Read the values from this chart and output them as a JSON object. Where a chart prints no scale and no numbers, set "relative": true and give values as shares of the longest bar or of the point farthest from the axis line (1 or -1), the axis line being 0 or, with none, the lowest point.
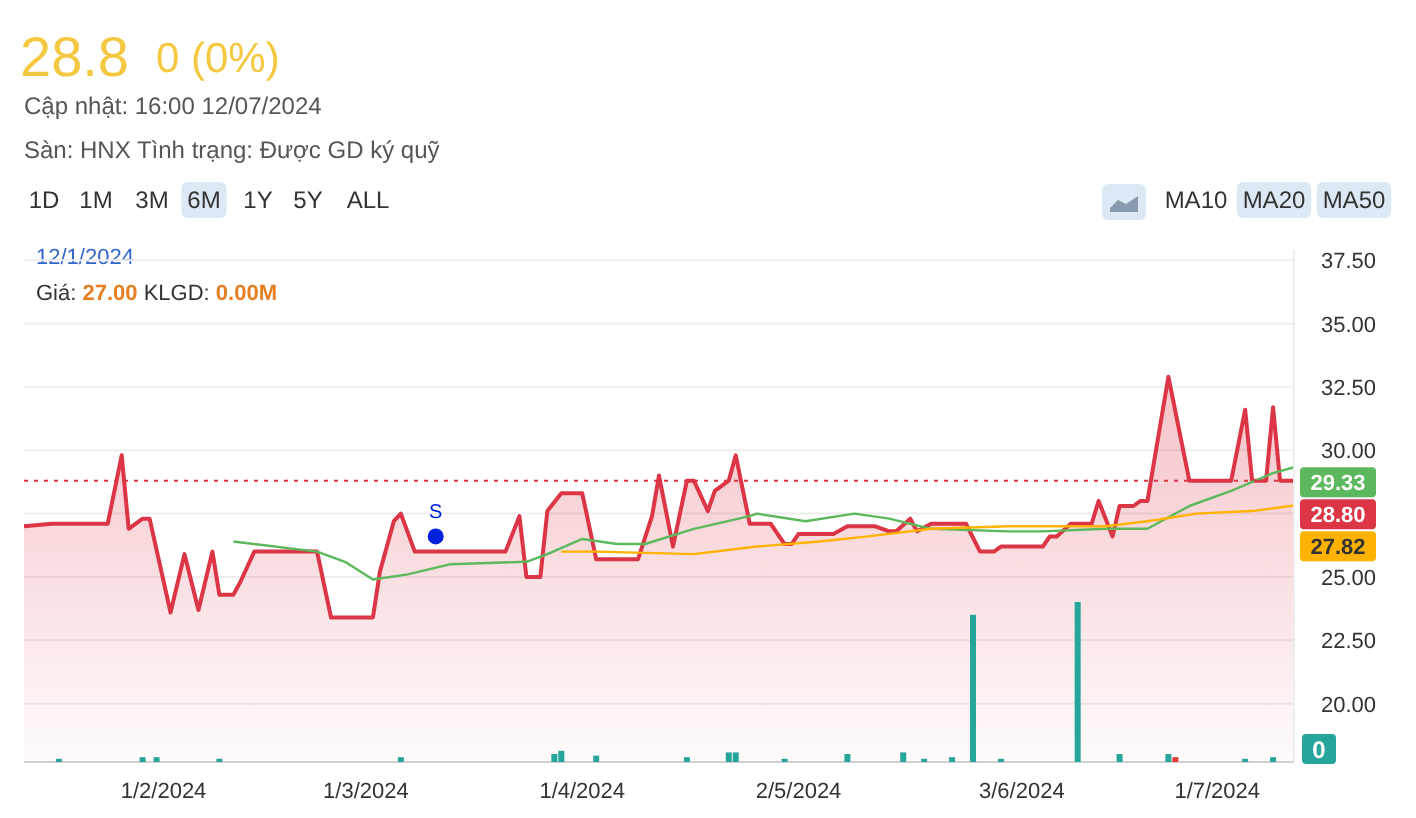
{
  "chart_data": [
    {
      "type": "area",
      "title": "28.8",
      "subtitle": "0 (0%)",
      "x": [
        "2024-01-12",
        "2024-01-16",
        "2024-01-24",
        "2024-01-26",
        "2024-01-27",
        "2024-01-29",
        "2024-01-30",
        "2024-02-02",
        "2024-02-04",
        "2024-02-06",
        "2024-02-08",
        "2024-02-09",
        "2024-02-11",
        "2024-02-12",
        "2024-02-14",
        "2024-02-23",
        "2024-02-25",
        "2024-03-02",
        "2024-03-03",
        "2024-03-05",
        "2024-03-06",
        "2024-03-08",
        "2024-03-21",
        "2024-03-23",
        "2024-03-24",
        "2024-03-26",
        "2024-03-27",
        "2024-03-29",
        "2024-04-01",
        "2024-04-03",
        "2024-04-09",
        "2024-04-11",
        "2024-04-12",
        "2024-04-14",
        "2024-04-16",
        "2024-04-17",
        "2024-04-19",
        "2024-04-20",
        "2024-04-22",
        "2024-04-23",
        "2024-04-25",
        "2024-04-28",
        "2024-04-30",
        "2024-05-01",
        "2024-05-02",
        "2024-05-07",
        "2024-05-09",
        "2024-05-13",
        "2024-05-15",
        "2024-05-16",
        "2024-05-18",
        "2024-05-19",
        "2024-05-21",
        "2024-05-26",
        "2024-05-28",
        "2024-05-30",
        "2024-05-31",
        "2024-06-06",
        "2024-06-07",
        "2024-06-08",
        "2024-06-10",
        "2024-06-13",
        "2024-06-14",
        "2024-06-16",
        "2024-06-17",
        "2024-06-19",
        "2024-06-20",
        "2024-06-21",
        "2024-06-24",
        "2024-06-27",
        "2024-07-03",
        "2024-07-05",
        "2024-07-06",
        "2024-07-08",
        "2024-07-09",
        "2024-07-10",
        "2024-07-12"
      ],
      "series": [
        {
          "color": "#dc3545",
          "values": [
            27.0,
            27.1,
            27.1,
            29.8,
            26.9,
            27.3,
            27.3,
            23.6,
            25.9,
            23.7,
            26.0,
            24.3,
            24.3,
            24.8,
            26.0,
            26.0,
            23.4,
            23.4,
            25.2,
            27.2,
            27.5,
            26.0,
            26.0,
            27.4,
            25.0,
            25.0,
            27.6,
            28.3,
            28.3,
            25.7,
            25.7,
            27.4,
            29.0,
            26.2,
            28.8,
            28.8,
            27.6,
            28.4,
            28.8,
            29.8,
            27.1,
            27.1,
            26.3,
            26.3,
            26.7,
            26.7,
            27.0,
            27.0,
            26.8,
            26.8,
            27.3,
            26.8,
            27.1,
            27.1,
            26.0,
            26.0,
            26.2,
            26.2,
            26.6,
            26.6,
            27.1,
            27.1,
            28.0,
            26.6,
            27.8,
            27.8,
            28.0,
            28.0,
            32.9,
            28.8,
            28.8,
            31.6,
            28.8,
            28.8,
            31.7,
            28.8,
            28.8
          ]
        },
        {
          "type": "line",
          "color": "#5cb85c",
          "x": [
            "2024-02-11",
            "2024-02-23",
            "2024-02-27",
            "2024-03-02",
            "2024-03-07",
            "2024-03-13",
            "2024-03-24",
            "2024-03-27",
            "2024-04-01",
            "2024-04-06",
            "2024-04-10",
            "2024-04-17",
            "2024-04-25",
            "2024-04-26",
            "2024-05-03",
            "2024-05-10",
            "2024-05-15",
            "2024-05-21",
            "2024-06-01",
            "2024-06-06",
            "2024-06-15",
            "2024-06-21",
            "2024-06-27",
            "2024-07-03",
            "2024-07-09",
            "2024-07-12"
          ],
          "values": [
            26.4,
            26.0,
            25.6,
            24.9,
            25.1,
            25.5,
            25.6,
            25.9,
            26.5,
            26.3,
            26.3,
            26.9,
            27.4,
            27.5,
            27.2,
            27.5,
            27.3,
            26.9,
            26.8,
            26.8,
            26.9,
            26.9,
            27.8,
            28.4,
            29.1,
            29.33
          ]
        },
        {
          "type": "line",
          "color": "#ffb300",
          "x": [
            "2024-03-29",
            "2024-04-03",
            "2024-04-17",
            "2024-04-26",
            "2024-05-05",
            "2024-05-12",
            "2024-05-21",
            "2024-06-01",
            "2024-06-15",
            "2024-06-21",
            "2024-06-28",
            "2024-07-06",
            "2024-07-12"
          ],
          "values": [
            26.0,
            26.0,
            25.9,
            26.2,
            26.4,
            26.6,
            26.9,
            27.0,
            27.0,
            27.2,
            27.5,
            27.6,
            27.82
          ]
        },
        {
          "type": "scatter",
          "color": "#0022dd",
          "marker": "circle",
          "x": [
            "2024-03-11"
          ],
          "values": [
            26.6
          ],
          "value_labels": [
            "S"
          ]
        }
      ],
      "xlim": [
        "2024-01-12",
        "2024-07-12"
      ],
      "xticks": [
        {
          "value": "2024-02-01",
          "label": "1/2/2024"
        },
        {
          "value": "2024-03-01",
          "label": "1/3/2024"
        },
        {
          "value": "2024-04-01",
          "label": "1/4/2024"
        },
        {
          "value": "2024-05-02",
          "label": "2/5/2024"
        },
        {
          "value": "2024-06-03",
          "label": "3/6/2024"
        },
        {
          "value": "2024-07-01",
          "label": "1/7/2024"
        }
      ],
      "ylim": [
        17.7,
        37.9
      ],
      "yticks": [
        {
          "value": 20,
          "label": "20.00"
        },
        {
          "value": 22.5,
          "label": "22.50"
        },
        {
          "value": 25,
          "label": "25.00"
        },
        {
          "value": 27.5,
          "label": null
        },
        {
          "value": 30,
          "label": "30.00"
        },
        {
          "value": 32.5,
          "label": "32.50"
        },
        {
          "value": 35,
          "label": "35.00"
        },
        {
          "value": 37.5,
          "label": "37.50"
        }
      ],
      "grid": "y",
      "ref_lines": [
        {
          "axis": "y",
          "value": 28.8,
          "label": "28.80",
          "color": "#dc3545",
          "line_style": "dotted"
        }
      ],
      "annotations": [
        "Cập nhật: 16:00 12/07/2024",
        "Sàn: HNX Tình trạng: Được GD ký quỹ",
        "1D",
        "1M",
        "3M",
        "6M",
        "1Y",
        "5Y",
        "ALL",
        "MA10",
        "MA20",
        "MA50",
        "12/1/2024",
        "Giá: 27.00 KLGD: 0.00M",
        {
          "text": "29.33",
          "x": "2024-07-12",
          "y": 29.33
        },
        {
          "text": "27.82",
          "x": "2024-07-12",
          "y": 27.82
        }
      ]
    },
    {
      "type": "bar",
      "relative": true,
      "xlim": [
        "2024-01-12",
        "2024-07-12"
      ],
      "x": [
        "2024-01-17",
        "2024-01-29",
        "2024-01-31",
        "2024-02-09",
        "2024-03-06",
        "2024-03-28",
        "2024-03-29",
        "2024-04-03",
        "2024-04-16",
        "2024-04-22",
        "2024-04-23",
        "2024-04-30",
        "2024-05-09",
        "2024-05-17",
        "2024-05-20",
        "2024-05-24",
        "2024-05-27",
        "2024-05-31",
        "2024-06-11",
        "2024-06-17",
        "2024-06-24",
        "2024-06-25",
        "2024-07-05",
        "2024-07-09"
      ],
      "values": [
        0.02,
        0.03,
        0.03,
        0.02,
        0.03,
        0.05,
        0.07,
        0.04,
        0.03,
        0.06,
        0.06,
        0.02,
        0.05,
        0.06,
        0.02,
        0.03,
        0.92,
        0.02,
        1.0,
        0.05,
        0.05,
        0.03,
        0.02,
        0.03
      ],
      "colors": [
        "#26a69a",
        "#26a69a",
        "#26a69a",
        "#26a69a",
        "#26a69a",
        "#26a69a",
        "#26a69a",
        "#26a69a",
        "#26a69a",
        "#26a69a",
        "#26a69a",
        "#26a69a",
        "#26a69a",
        "#26a69a",
        "#26a69a",
        "#26a69a",
        "#26a69a",
        "#26a69a",
        "#26a69a",
        "#26a69a",
        "#26a69a",
        "#e53935",
        "#26a69a",
        "#26a69a"
      ],
      "annotations": [
        "0"
      ]
    }
  ]
}
